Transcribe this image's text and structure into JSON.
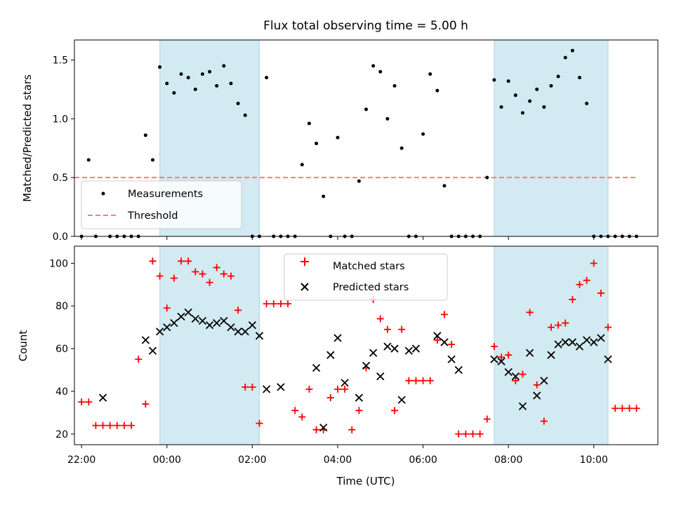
{
  "chart_data": [
    {
      "type": "scatter",
      "title": "Flux total observing time = 5.00 h",
      "xlabel": "",
      "ylabel": "Matched/Predicted stars",
      "ylim": [
        0,
        1.67
      ],
      "yticks": [
        "0.0",
        "0.5",
        "1.0",
        "1.5"
      ],
      "legend": {
        "placement": "lower-left",
        "entries": [
          "Measurements",
          "Threshold"
        ]
      },
      "threshold": {
        "name": "Threshold",
        "y": 0.5,
        "x_start": "21:50",
        "x_end": "11:00",
        "color": "#f08080"
      },
      "series": [
        {
          "name": "Measurements",
          "color": "#000000",
          "x": [
            "22:00",
            "22:10",
            "22:20",
            "22:40",
            "22:50",
            "23:00",
            "23:10",
            "23:20",
            "23:30",
            "23:40",
            "23:50",
            "00:00",
            "00:10",
            "00:20",
            "00:30",
            "00:40",
            "00:50",
            "01:00",
            "01:10",
            "01:20",
            "01:30",
            "01:40",
            "01:50",
            "02:00",
            "02:10",
            "02:20",
            "02:30",
            "02:40",
            "02:50",
            "03:00",
            "03:10",
            "03:20",
            "03:30",
            "03:40",
            "03:50",
            "04:00",
            "04:10",
            "04:20",
            "04:30",
            "04:40",
            "04:50",
            "05:00",
            "05:10",
            "05:20",
            "05:30",
            "05:40",
            "05:50",
            "06:00",
            "06:10",
            "06:20",
            "06:30",
            "06:40",
            "06:50",
            "07:00",
            "07:10",
            "07:20",
            "07:30",
            "07:40",
            "07:50",
            "08:00",
            "08:10",
            "08:20",
            "08:30",
            "08:40",
            "08:50",
            "09:00",
            "09:10",
            "09:20",
            "09:30",
            "09:40",
            "09:50",
            "10:00",
            "10:10",
            "10:20",
            "10:30",
            "10:40",
            "10:50",
            "11:00"
          ],
          "y": [
            0.0,
            0.65,
            0.0,
            0.0,
            0.0,
            0.0,
            0.0,
            0.0,
            0.86,
            0.65,
            1.44,
            1.3,
            1.22,
            1.38,
            1.35,
            1.25,
            1.38,
            1.4,
            1.28,
            1.45,
            1.3,
            1.13,
            1.03,
            0.0,
            0.0,
            1.35,
            0.0,
            0.0,
            0.0,
            0.0,
            0.61,
            0.96,
            0.79,
            0.34,
            0.0,
            0.84,
            0.0,
            0.0,
            0.47,
            1.08,
            1.45,
            1.4,
            1.0,
            1.28,
            0.75,
            0.0,
            0.0,
            0.87,
            1.38,
            1.24,
            0.43,
            0.0,
            0.0,
            0.0,
            0.0,
            0.0,
            0.5,
            1.33,
            1.1,
            1.32,
            1.2,
            1.05,
            1.15,
            1.25,
            1.1,
            1.28,
            1.36,
            1.52,
            1.58,
            1.35,
            1.13,
            0.0,
            0.0,
            0.0,
            0.0,
            0.0,
            0.0,
            0.0
          ]
        }
      ]
    },
    {
      "type": "scatter",
      "title": "",
      "xlabel": "Time (UTC)",
      "ylabel": "Count",
      "ylim": [
        15,
        108
      ],
      "yticks": [
        "20",
        "40",
        "60",
        "80",
        "100"
      ],
      "xlim": [
        "21:50",
        "11:30"
      ],
      "xticks": [
        "22:00",
        "00:00",
        "02:00",
        "04:00",
        "06:00",
        "08:00",
        "10:00"
      ],
      "legend": {
        "placement": "top-center",
        "entries": [
          "Matched stars",
          "Predicted stars"
        ]
      },
      "shaded_regions": [
        {
          "start": "23:50",
          "end": "02:10",
          "color": "#add8e6"
        },
        {
          "start": "07:40",
          "end": "10:20",
          "color": "#add8e6"
        }
      ],
      "series": [
        {
          "name": "Matched stars",
          "color": "#ff0000",
          "marker": "plus",
          "x": [
            "22:00",
            "22:10",
            "22:20",
            "22:30",
            "22:40",
            "22:50",
            "23:00",
            "23:10",
            "23:20",
            "23:30",
            "23:40",
            "23:50",
            "00:00",
            "00:10",
            "00:20",
            "00:30",
            "00:40",
            "00:50",
            "01:00",
            "01:10",
            "01:20",
            "01:30",
            "01:40",
            "01:50",
            "02:00",
            "02:10",
            "02:20",
            "02:30",
            "02:40",
            "02:50",
            "03:00",
            "03:10",
            "03:20",
            "03:30",
            "03:40",
            "03:50",
            "04:00",
            "04:10",
            "04:20",
            "04:30",
            "04:40",
            "04:50",
            "05:00",
            "05:10",
            "05:20",
            "05:30",
            "05:40",
            "05:50",
            "06:00",
            "06:10",
            "06:20",
            "06:30",
            "06:40",
            "06:50",
            "07:00",
            "07:10",
            "07:20",
            "07:30",
            "07:40",
            "07:50",
            "08:00",
            "08:10",
            "08:20",
            "08:30",
            "08:40",
            "08:50",
            "09:00",
            "09:10",
            "09:20",
            "09:30",
            "09:40",
            "09:50",
            "10:00",
            "10:10",
            "10:20",
            "10:30",
            "10:40",
            "10:50",
            "11:00"
          ],
          "y": [
            35,
            35,
            24,
            24,
            24,
            24,
            24,
            24,
            55,
            34,
            101,
            94,
            79,
            93,
            101,
            101,
            96,
            95,
            91,
            98,
            95,
            94,
            78,
            42,
            42,
            25,
            81,
            81,
            81,
            81,
            31,
            28,
            41,
            22,
            22,
            37,
            41,
            41,
            22,
            31,
            51,
            83,
            74,
            69,
            31,
            69,
            45,
            45,
            45,
            45,
            64,
            76,
            62,
            20,
            20,
            20,
            20,
            27,
            61,
            56,
            57,
            45,
            48,
            77,
            43,
            26,
            70,
            71,
            72,
            83,
            90,
            92,
            100,
            86,
            70,
            32,
            32,
            32,
            32
          ]
        },
        {
          "name": "Predicted stars",
          "color": "#000000",
          "marker": "x",
          "x": [
            "22:30",
            "23:30",
            "23:40",
            "23:50",
            "00:00",
            "00:10",
            "00:20",
            "00:30",
            "00:40",
            "00:50",
            "01:00",
            "01:10",
            "01:20",
            "01:30",
            "01:40",
            "01:50",
            "02:00",
            "02:10",
            "02:20",
            "02:40",
            "03:30",
            "03:40",
            "03:50",
            "04:00",
            "04:10",
            "04:30",
            "04:40",
            "04:50",
            "05:00",
            "05:10",
            "05:20",
            "05:30",
            "05:40",
            "05:50",
            "06:20",
            "06:30",
            "06:40",
            "06:50",
            "07:40",
            "07:50",
            "08:00",
            "08:10",
            "08:20",
            "08:30",
            "08:40",
            "08:50",
            "09:00",
            "09:10",
            "09:20",
            "09:30",
            "09:40",
            "09:50",
            "10:00",
            "10:10",
            "10:20"
          ],
          "y": [
            37,
            64,
            59,
            68,
            70,
            72,
            75,
            77,
            74,
            73,
            71,
            72,
            73,
            70,
            68,
            68,
            71,
            66,
            41,
            42,
            51,
            23,
            57,
            65,
            44,
            37,
            52,
            58,
            47,
            61,
            60,
            36,
            59,
            60,
            66,
            63,
            55,
            50,
            55,
            54,
            49,
            47,
            33,
            58,
            38,
            45,
            57,
            62,
            63,
            63,
            61,
            64,
            63,
            65,
            55
          ]
        }
      ]
    }
  ]
}
